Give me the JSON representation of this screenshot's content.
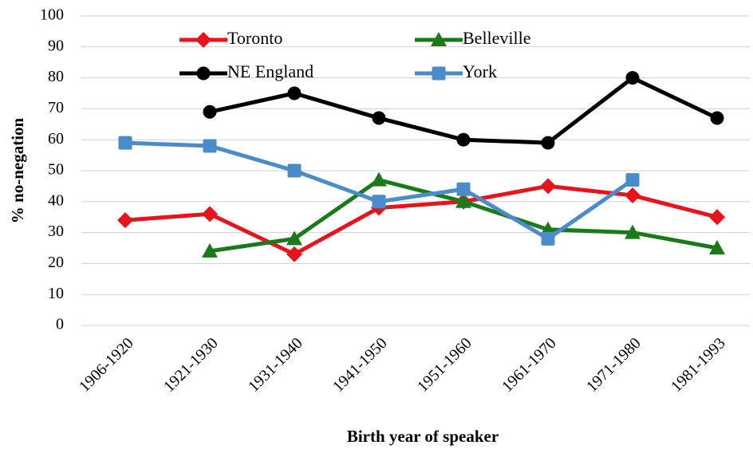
{
  "chart_data": {
    "type": "line",
    "xlabel": "Birth year of speaker",
    "ylabel": "% no-negation",
    "categories": [
      "1906-1920",
      "1921-1930",
      "1931-1940",
      "1941-1950",
      "1951-1960",
      "1961-1970",
      "1971-1980",
      "1981-1993"
    ],
    "series": [
      {
        "name": "Toronto",
        "color": "#e8141b",
        "marker": "diamond",
        "values": [
          34,
          36,
          23,
          38,
          40,
          45,
          42,
          35
        ]
      },
      {
        "name": "Belleville",
        "color": "#1a7a1a",
        "marker": "triangle",
        "values": [
          null,
          24,
          28,
          47,
          40,
          31,
          30,
          25
        ]
      },
      {
        "name": "NE England",
        "color": "#000000",
        "marker": "circle",
        "values": [
          null,
          69,
          75,
          67,
          60,
          59,
          80,
          67
        ]
      },
      {
        "name": "York",
        "color": "#4a8bc9",
        "marker": "square",
        "values": [
          59,
          58,
          50,
          40,
          44,
          28,
          47,
          null
        ]
      }
    ],
    "ylim": [
      0,
      100
    ],
    "yticks": [
      0,
      10,
      20,
      30,
      40,
      50,
      60,
      70,
      80,
      90,
      100
    ],
    "grid": true
  }
}
